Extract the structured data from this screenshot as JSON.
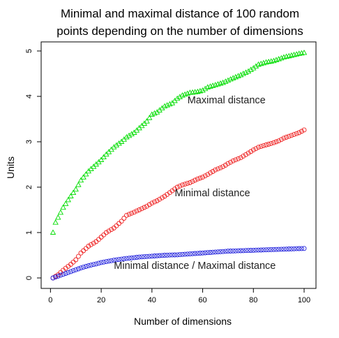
{
  "chart_data": {
    "type": "scatter",
    "title": "Minimal and maximal distance of 100 random",
    "subtitle": "points depending on the number of dimensions",
    "xlabel": "Number of dimensions",
    "ylabel": "Units",
    "xlim": [
      1,
      100
    ],
    "ylim": [
      0,
      5
    ],
    "xticks": [
      0,
      20,
      40,
      60,
      80,
      100
    ],
    "yticks": [
      0,
      1,
      2,
      3,
      4,
      5
    ],
    "grid": false,
    "colors": {
      "max": "#00dd00",
      "min": "#ee2222",
      "ratio": "#2222dd"
    },
    "series": [
      {
        "key": "max",
        "marker": "triangle",
        "anchors_x": [
          1,
          2,
          5,
          8,
          10,
          12,
          15,
          18,
          20,
          22,
          25,
          28,
          30,
          33,
          35,
          38,
          40,
          42,
          45,
          48,
          50,
          52,
          55,
          58,
          60,
          62,
          65,
          68,
          70,
          72,
          75,
          78,
          80,
          82,
          85,
          88,
          90,
          92,
          95,
          98,
          100
        ],
        "anchors_y": [
          1.0,
          1.22,
          1.55,
          1.8,
          1.95,
          2.15,
          2.35,
          2.5,
          2.6,
          2.72,
          2.88,
          3.0,
          3.1,
          3.2,
          3.3,
          3.45,
          3.6,
          3.65,
          3.78,
          3.85,
          3.95,
          4.02,
          4.08,
          4.1,
          4.13,
          4.2,
          4.25,
          4.3,
          4.35,
          4.4,
          4.47,
          4.55,
          4.62,
          4.7,
          4.75,
          4.78,
          4.82,
          4.86,
          4.9,
          4.94,
          4.96
        ]
      },
      {
        "key": "min",
        "marker": "circle",
        "anchors_x": [
          1,
          3,
          5,
          8,
          10,
          12,
          15,
          18,
          20,
          22,
          25,
          28,
          30,
          33,
          35,
          38,
          40,
          42,
          45,
          48,
          50,
          52,
          55,
          58,
          60,
          62,
          65,
          68,
          70,
          72,
          75,
          78,
          80,
          82,
          85,
          88,
          90,
          92,
          95,
          98,
          100
        ],
        "anchors_y": [
          0.0,
          0.07,
          0.17,
          0.3,
          0.4,
          0.55,
          0.7,
          0.8,
          0.9,
          1.0,
          1.1,
          1.25,
          1.38,
          1.45,
          1.5,
          1.58,
          1.65,
          1.7,
          1.8,
          1.92,
          2.0,
          2.05,
          2.1,
          2.18,
          2.22,
          2.28,
          2.38,
          2.45,
          2.52,
          2.58,
          2.65,
          2.75,
          2.82,
          2.88,
          2.93,
          2.98,
          3.02,
          3.08,
          3.14,
          3.2,
          3.26
        ]
      },
      {
        "key": "ratio",
        "marker": "circle",
        "anchors_x": [
          1,
          3,
          5,
          8,
          10,
          12,
          15,
          18,
          20,
          25,
          30,
          35,
          40,
          45,
          50,
          55,
          60,
          65,
          70,
          75,
          80,
          85,
          90,
          95,
          100
        ],
        "anchors_y": [
          0.0,
          0.04,
          0.08,
          0.14,
          0.18,
          0.22,
          0.27,
          0.31,
          0.34,
          0.39,
          0.43,
          0.46,
          0.48,
          0.5,
          0.51,
          0.53,
          0.55,
          0.57,
          0.59,
          0.6,
          0.61,
          0.62,
          0.63,
          0.64,
          0.65
        ]
      }
    ],
    "annotations": [
      {
        "text": "Maximal distance",
        "x": 54,
        "y": 3.85
      },
      {
        "text": "Minimal distance",
        "x": 49,
        "y": 1.8
      },
      {
        "text": "Minimal distance / Maximal distance",
        "x": 25,
        "y": 0.2
      }
    ]
  }
}
